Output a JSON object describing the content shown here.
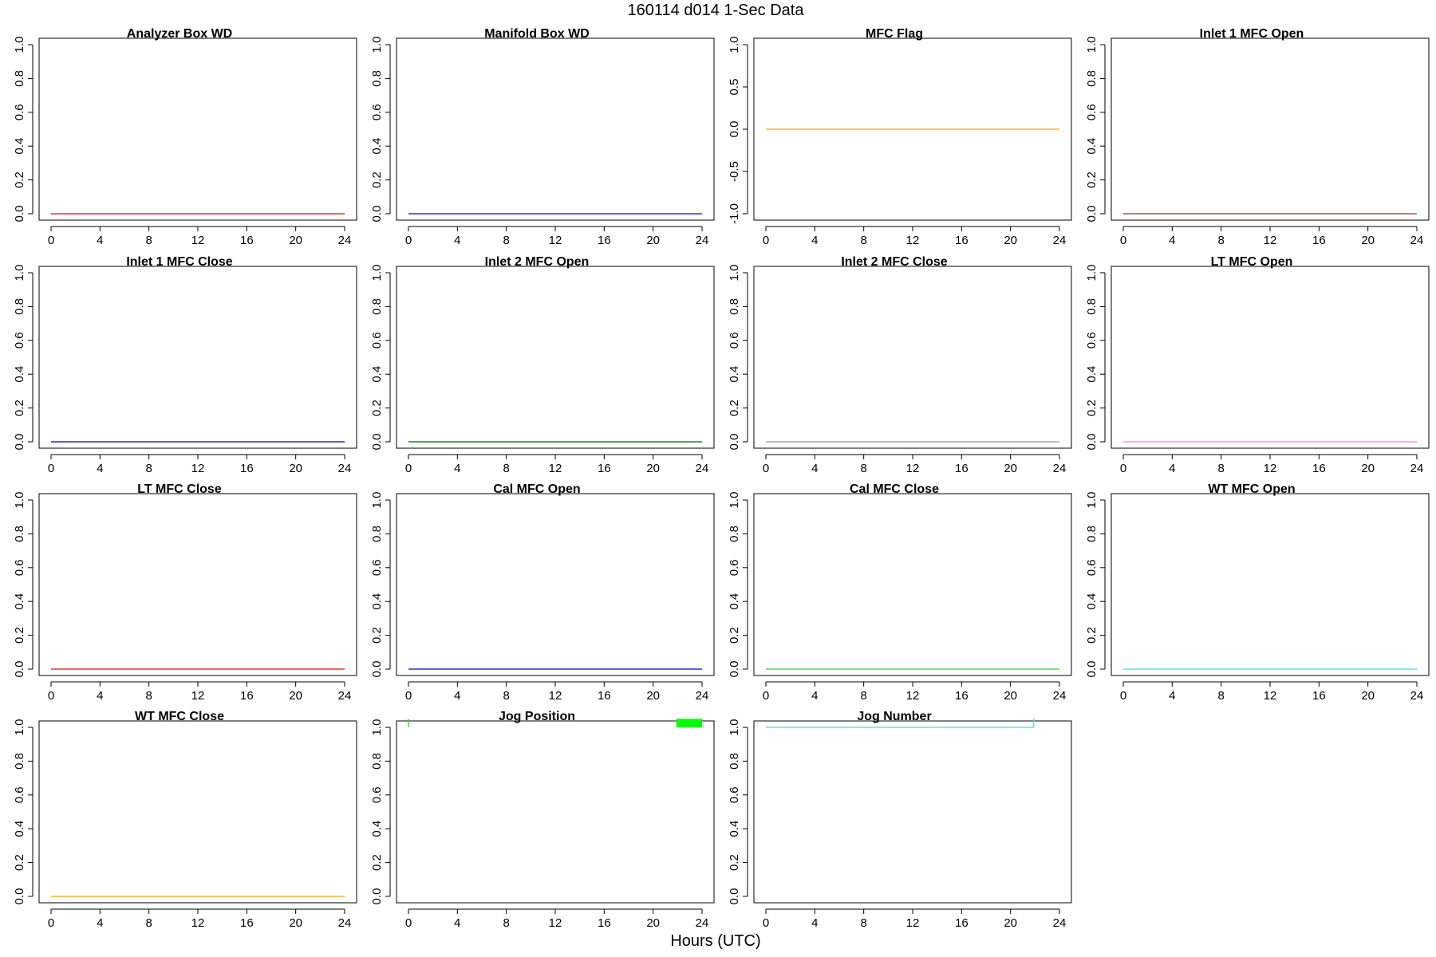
{
  "figure": {
    "title": "160114   d014   1-Sec Data",
    "xlabel": "Hours (UTC)"
  },
  "chart_data": [
    {
      "type": "line",
      "title": "Analyzer Box WD",
      "xlim": [
        0,
        24
      ],
      "ylim": [
        0,
        1
      ],
      "x_ticks": [
        0,
        4,
        8,
        12,
        16,
        20,
        24
      ],
      "y_ticks": [
        0,
        0.2,
        0.4,
        0.6,
        0.8,
        1
      ],
      "y_tick_labels": [
        "0.0",
        "0.2",
        "0.4",
        "0.6",
        "0.8",
        "1.0"
      ],
      "color": "#FF0000",
      "series": [
        {
          "x": [
            0,
            24
          ],
          "y": [
            0,
            0
          ]
        }
      ]
    },
    {
      "type": "line",
      "title": "Manifold Box WD",
      "xlim": [
        0,
        24
      ],
      "ylim": [
        0,
        1
      ],
      "x_ticks": [
        0,
        4,
        8,
        12,
        16,
        20,
        24
      ],
      "y_ticks": [
        0,
        0.2,
        0.4,
        0.6,
        0.8,
        1
      ],
      "y_tick_labels": [
        "0.0",
        "0.2",
        "0.4",
        "0.6",
        "0.8",
        "1.0"
      ],
      "color": "#0000FF",
      "series": [
        {
          "x": [
            0,
            24
          ],
          "y": [
            0,
            0
          ]
        }
      ]
    },
    {
      "type": "line",
      "title": "MFC Flag",
      "xlim": [
        0,
        24
      ],
      "ylim": [
        -1,
        1
      ],
      "x_ticks": [
        0,
        4,
        8,
        12,
        16,
        20,
        24
      ],
      "y_ticks": [
        -1,
        -0.5,
        0,
        0.5,
        1
      ],
      "y_tick_labels": [
        "-1.0",
        "-0.5",
        "0.0",
        "0.5",
        "1.0"
      ],
      "color": "#FFA500",
      "series": [
        {
          "x": [
            0,
            24
          ],
          "y": [
            0,
            0
          ]
        }
      ]
    },
    {
      "type": "line",
      "title": "Inlet 1 MFC Open",
      "xlim": [
        0,
        24
      ],
      "ylim": [
        0,
        1
      ],
      "x_ticks": [
        0,
        4,
        8,
        12,
        16,
        20,
        24
      ],
      "y_ticks": [
        0,
        0.2,
        0.4,
        0.6,
        0.8,
        1
      ],
      "y_tick_labels": [
        "0.0",
        "0.2",
        "0.4",
        "0.6",
        "0.8",
        "1.0"
      ],
      "color": "#A52A2A",
      "series": [
        {
          "x": [
            0,
            24
          ],
          "y": [
            0,
            0
          ]
        }
      ]
    },
    {
      "type": "line",
      "title": "Inlet 1 MFC Close",
      "xlim": [
        0,
        24
      ],
      "ylim": [
        0,
        1
      ],
      "x_ticks": [
        0,
        4,
        8,
        12,
        16,
        20,
        24
      ],
      "y_ticks": [
        0,
        0.2,
        0.4,
        0.6,
        0.8,
        1
      ],
      "y_tick_labels": [
        "0.0",
        "0.2",
        "0.4",
        "0.6",
        "0.8",
        "1.0"
      ],
      "color": "#00008B",
      "series": [
        {
          "x": [
            0,
            24
          ],
          "y": [
            0,
            0
          ]
        }
      ]
    },
    {
      "type": "line",
      "title": "Inlet 2 MFC Open",
      "xlim": [
        0,
        24
      ],
      "ylim": [
        0,
        1
      ],
      "x_ticks": [
        0,
        4,
        8,
        12,
        16,
        20,
        24
      ],
      "y_ticks": [
        0,
        0.2,
        0.4,
        0.6,
        0.8,
        1
      ],
      "y_tick_labels": [
        "0.0",
        "0.2",
        "0.4",
        "0.6",
        "0.8",
        "1.0"
      ],
      "color": "#006400",
      "series": [
        {
          "x": [
            0,
            24
          ],
          "y": [
            0,
            0
          ]
        }
      ]
    },
    {
      "type": "line",
      "title": "Inlet 2 MFC Close",
      "xlim": [
        0,
        24
      ],
      "ylim": [
        0,
        1
      ],
      "x_ticks": [
        0,
        4,
        8,
        12,
        16,
        20,
        24
      ],
      "y_ticks": [
        0,
        0.2,
        0.4,
        0.6,
        0.8,
        1
      ],
      "y_tick_labels": [
        "0.0",
        "0.2",
        "0.4",
        "0.6",
        "0.8",
        "1.0"
      ],
      "color": "#999999",
      "series": [
        {
          "x": [
            0,
            24
          ],
          "y": [
            0,
            0
          ]
        }
      ]
    },
    {
      "type": "line",
      "title": "LT MFC Open",
      "xlim": [
        0,
        24
      ],
      "ylim": [
        0,
        1
      ],
      "x_ticks": [
        0,
        4,
        8,
        12,
        16,
        20,
        24
      ],
      "y_ticks": [
        0,
        0.2,
        0.4,
        0.6,
        0.8,
        1
      ],
      "y_tick_labels": [
        "0.0",
        "0.2",
        "0.4",
        "0.6",
        "0.8",
        "1.0"
      ],
      "color": "#EE82EE",
      "series": [
        {
          "x": [
            0,
            24
          ],
          "y": [
            0,
            0
          ]
        }
      ]
    },
    {
      "type": "line",
      "title": "LT MFC Close",
      "xlim": [
        0,
        24
      ],
      "ylim": [
        0,
        1
      ],
      "x_ticks": [
        0,
        4,
        8,
        12,
        16,
        20,
        24
      ],
      "y_ticks": [
        0,
        0.2,
        0.4,
        0.6,
        0.8,
        1
      ],
      "y_tick_labels": [
        "0.0",
        "0.2",
        "0.4",
        "0.6",
        "0.8",
        "1.0"
      ],
      "color": "#FF0000",
      "series": [
        {
          "x": [
            0,
            24
          ],
          "y": [
            0,
            0
          ]
        }
      ]
    },
    {
      "type": "line",
      "title": "Cal MFC Open",
      "xlim": [
        0,
        24
      ],
      "ylim": [
        0,
        1
      ],
      "x_ticks": [
        0,
        4,
        8,
        12,
        16,
        20,
        24
      ],
      "y_ticks": [
        0,
        0.2,
        0.4,
        0.6,
        0.8,
        1
      ],
      "y_tick_labels": [
        "0.0",
        "0.2",
        "0.4",
        "0.6",
        "0.8",
        "1.0"
      ],
      "color": "#0000CD",
      "series": [
        {
          "x": [
            0,
            24
          ],
          "y": [
            0,
            0
          ]
        }
      ]
    },
    {
      "type": "line",
      "title": "Cal MFC Close",
      "xlim": [
        0,
        24
      ],
      "ylim": [
        0,
        1
      ],
      "x_ticks": [
        0,
        4,
        8,
        12,
        16,
        20,
        24
      ],
      "y_ticks": [
        0,
        0.2,
        0.4,
        0.6,
        0.8,
        1
      ],
      "y_tick_labels": [
        "0.0",
        "0.2",
        "0.4",
        "0.6",
        "0.8",
        "1.0"
      ],
      "color": "#32CD32",
      "series": [
        {
          "x": [
            0,
            24
          ],
          "y": [
            0,
            0
          ]
        }
      ]
    },
    {
      "type": "line",
      "title": "WT MFC Open",
      "xlim": [
        0,
        24
      ],
      "ylim": [
        0,
        1
      ],
      "x_ticks": [
        0,
        4,
        8,
        12,
        16,
        20,
        24
      ],
      "y_ticks": [
        0,
        0.2,
        0.4,
        0.6,
        0.8,
        1
      ],
      "y_tick_labels": [
        "0.0",
        "0.2",
        "0.4",
        "0.6",
        "0.8",
        "1.0"
      ],
      "color": "#40E0D0",
      "series": [
        {
          "x": [
            0,
            24
          ],
          "y": [
            0,
            0
          ]
        }
      ]
    },
    {
      "type": "line",
      "title": "WT MFC Close",
      "xlim": [
        0,
        24
      ],
      "ylim": [
        0,
        1
      ],
      "x_ticks": [
        0,
        4,
        8,
        12,
        16,
        20,
        24
      ],
      "y_ticks": [
        0,
        0.2,
        0.4,
        0.6,
        0.8,
        1
      ],
      "y_tick_labels": [
        "0.0",
        "0.2",
        "0.4",
        "0.6",
        "0.8",
        "1.0"
      ],
      "color": "#FFA500",
      "series": [
        {
          "x": [
            0,
            24
          ],
          "y": [
            0,
            0
          ]
        }
      ]
    },
    {
      "type": "line",
      "title": "Jog Position",
      "xlim": [
        0,
        24
      ],
      "ylim": [
        0,
        1
      ],
      "x_ticks": [
        0,
        4,
        8,
        12,
        16,
        20,
        24
      ],
      "y_ticks": [
        0,
        0.2,
        0.4,
        0.6,
        0.8,
        1
      ],
      "y_tick_labels": [
        "0.0",
        "0.2",
        "0.4",
        "0.6",
        "0.8",
        "1.0"
      ],
      "color": "#00FF00",
      "series": [
        {
          "x": [
            0,
            0
          ],
          "y": [
            1,
            1.05
          ]
        },
        {
          "x": [
            21.9,
            24
          ],
          "y": [
            1,
            1.05
          ],
          "style": "filled-band"
        }
      ]
    },
    {
      "type": "line",
      "title": "Jog Number",
      "xlim": [
        0,
        24
      ],
      "ylim": [
        0,
        1
      ],
      "x_ticks": [
        0,
        4,
        8,
        12,
        16,
        20,
        24
      ],
      "y_ticks": [
        0,
        0.2,
        0.4,
        0.6,
        0.8,
        1
      ],
      "y_tick_labels": [
        "0.0",
        "0.2",
        "0.4",
        "0.6",
        "0.8",
        "1.0"
      ],
      "color": "#40E0D0",
      "series": [
        {
          "x": [
            0,
            21.9,
            21.9
          ],
          "y": [
            1,
            1,
            1.05
          ]
        }
      ]
    }
  ]
}
